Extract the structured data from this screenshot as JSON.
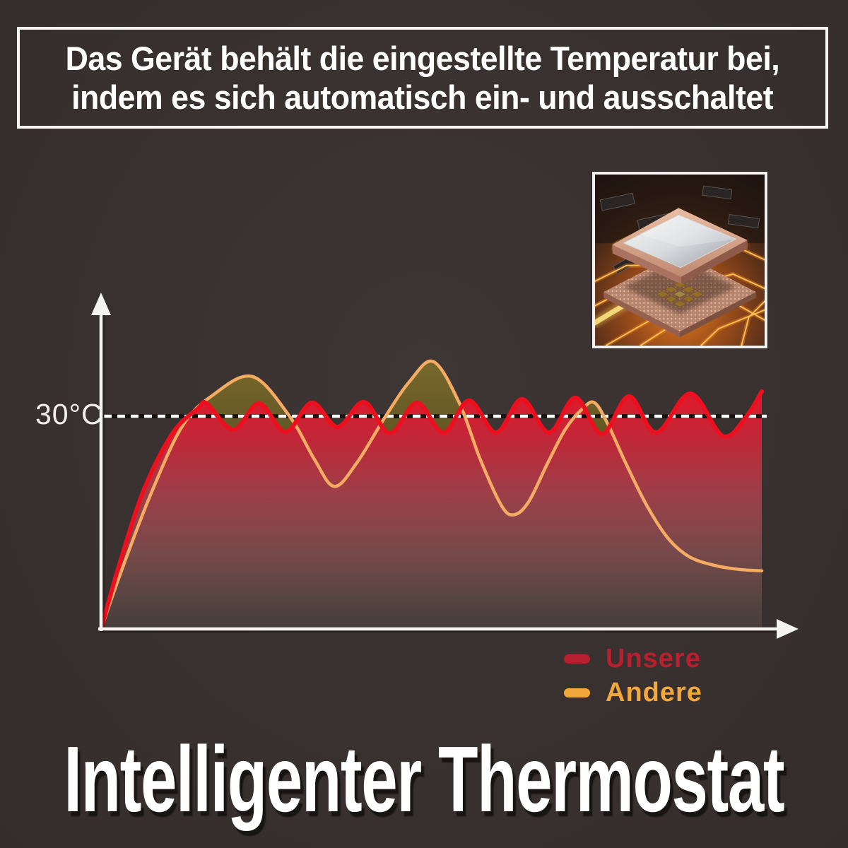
{
  "banner": {
    "line1": "Das Gerät behält die eingestellte Temperatur bei,",
    "line2": "indem es sich automatisch ein- und ausschaltet"
  },
  "footer_title": "Intelligenter Thermostat",
  "chip_image": {
    "description": "CPU-Chip mit leuchtenden Leiterbahnen"
  },
  "chart_data": {
    "type": "line",
    "title": "",
    "xlabel": "",
    "ylabel": "",
    "grid": false,
    "x_range": [
      0,
      100
    ],
    "y_unit": "°C",
    "y_visible_max": 45,
    "reference_line": {
      "label": "30°C",
      "value": 30,
      "style": "dashed",
      "color": "#ffffff"
    },
    "legend_position": "bottom-right",
    "axis_color": "#f6f4f1",
    "fill_colors": {
      "unsere_top": "#e2182a",
      "unsere_bottom": "#463d39",
      "overshoot_olive": "#6b5f28"
    },
    "series": [
      {
        "name": "Unsere",
        "color": "#ee0f1e",
        "legend_color": "#b7202e",
        "points": [
          [
            0,
            0
          ],
          [
            2.9,
            9.5
          ],
          [
            6.6,
            19.9
          ],
          [
            10.9,
            27.7
          ],
          [
            14.7,
            31.1
          ],
          [
            16,
            31.8
          ],
          [
            20,
            28.1
          ],
          [
            23.9,
            31.8
          ],
          [
            27.9,
            27.8
          ],
          [
            31.9,
            31.9
          ],
          [
            35.8,
            28.5
          ],
          [
            39.8,
            32
          ],
          [
            43.7,
            27.6
          ],
          [
            47.8,
            31.9
          ],
          [
            51.8,
            27.7
          ],
          [
            55.7,
            32.2
          ],
          [
            59.8,
            27.7
          ],
          [
            63.7,
            32.4
          ],
          [
            67.8,
            27.7
          ],
          [
            71.8,
            32.6
          ],
          [
            75.8,
            27.5
          ],
          [
            79.9,
            32.8
          ],
          [
            84,
            27.7
          ],
          [
            89.2,
            33.2
          ],
          [
            94.1,
            27.2
          ],
          [
            97.6,
            29.9
          ],
          [
            100,
            33.5
          ]
        ]
      },
      {
        "name": "Andere",
        "color": "#f4ab64",
        "legend_color": "#f2a73c",
        "points": [
          [
            0,
            0
          ],
          [
            3.4,
            9
          ],
          [
            7.7,
            19.4
          ],
          [
            12.3,
            28.6
          ],
          [
            16.8,
            32.9
          ],
          [
            22.9,
            35.6
          ],
          [
            28.6,
            29.9
          ],
          [
            32.3,
            23.9
          ],
          [
            35.3,
            20.1
          ],
          [
            38.7,
            23.4
          ],
          [
            43,
            29.9
          ],
          [
            46.7,
            34.9
          ],
          [
            50.3,
            37.7
          ],
          [
            54.2,
            31.9
          ],
          [
            57.4,
            23.9
          ],
          [
            60.6,
            17.4
          ],
          [
            62.5,
            16.1
          ],
          [
            64.7,
            17.9
          ],
          [
            67.6,
            23.4
          ],
          [
            70.3,
            28.2
          ],
          [
            72.9,
            31.1
          ],
          [
            74.7,
            31.9
          ],
          [
            76.7,
            28.9
          ],
          [
            79.4,
            23.4
          ],
          [
            82.6,
            17.4
          ],
          [
            85.8,
            12.8
          ],
          [
            89,
            10.2
          ],
          [
            92.7,
            9
          ],
          [
            96.5,
            8.4
          ],
          [
            100,
            8.2
          ]
        ]
      }
    ]
  }
}
